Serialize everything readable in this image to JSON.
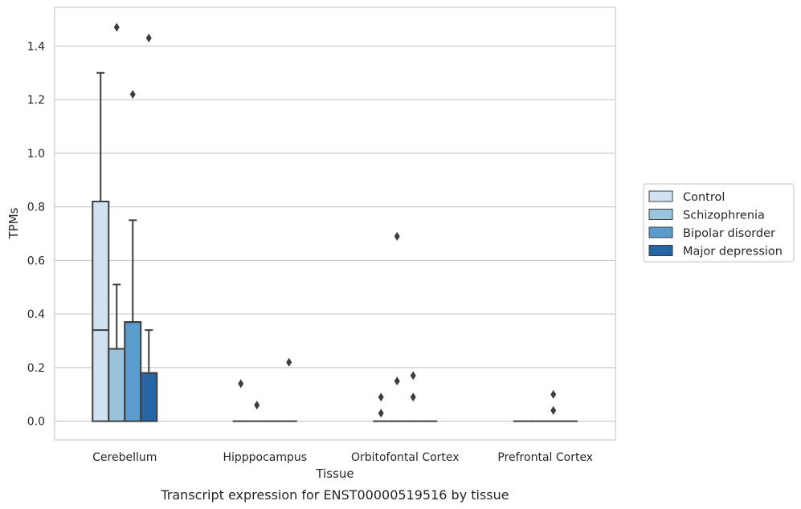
{
  "caption": "Transcript expression for ENST00000519516 by tissue",
  "chart_data": {
    "type": "box",
    "xlabel": "Tissue",
    "ylabel": "TPMs",
    "ylim": [
      -0.07,
      1.545
    ],
    "yticks": [
      "0.0",
      "0.2",
      "0.4",
      "0.6",
      "0.8",
      "1.0",
      "1.2",
      "1.4"
    ],
    "categories": [
      "Cerebellum",
      "Hipppocampus",
      "Orbitofontal Cortex",
      "Prefrontal Cortex"
    ],
    "grid": "horizontal",
    "legend_position": "right",
    "series": [
      {
        "name": "Control",
        "color": "#d0e1f1",
        "boxes": [
          {
            "q1": 0,
            "median": 0.34,
            "q3": 0.82,
            "whisker_low": 0,
            "whisker_high": 1.3,
            "outliers": []
          },
          {
            "q1": 0,
            "median": 0,
            "q3": 0,
            "whisker_low": 0,
            "whisker_high": 0,
            "outliers": [
              0.14
            ]
          },
          {
            "q1": 0,
            "median": 0,
            "q3": 0,
            "whisker_low": 0,
            "whisker_high": 0,
            "outliers": [
              0.03,
              0.09
            ]
          },
          {
            "q1": 0,
            "median": 0,
            "q3": 0,
            "whisker_low": 0,
            "whisker_high": 0,
            "outliers": []
          }
        ]
      },
      {
        "name": "Schizophrenia",
        "color": "#9ac3dc",
        "boxes": [
          {
            "q1": 0,
            "median": 0.27,
            "q3": 0.27,
            "whisker_low": 0,
            "whisker_high": 0.51,
            "outliers": [
              1.47
            ]
          },
          {
            "q1": 0,
            "median": 0,
            "q3": 0,
            "whisker_low": 0,
            "whisker_high": 0,
            "outliers": [
              0.06
            ]
          },
          {
            "q1": 0,
            "median": 0,
            "q3": 0,
            "whisker_low": 0,
            "whisker_high": 0,
            "outliers": [
              0.15,
              0.69
            ]
          },
          {
            "q1": 0,
            "median": 0,
            "q3": 0,
            "whisker_low": 0,
            "whisker_high": 0,
            "outliers": []
          }
        ]
      },
      {
        "name": "Bipolar disorder",
        "color": "#5a9ccb",
        "boxes": [
          {
            "q1": 0,
            "median": 0.37,
            "q3": 0.37,
            "whisker_low": 0,
            "whisker_high": 0.75,
            "outliers": [
              1.22
            ]
          },
          {
            "q1": 0,
            "median": 0,
            "q3": 0,
            "whisker_low": 0,
            "whisker_high": 0,
            "outliers": []
          },
          {
            "q1": 0,
            "median": 0,
            "q3": 0,
            "whisker_low": 0,
            "whisker_high": 0,
            "outliers": [
              0.09,
              0.17
            ]
          },
          {
            "q1": 0,
            "median": 0,
            "q3": 0,
            "whisker_low": 0,
            "whisker_high": 0,
            "outliers": [
              0.04,
              0.1
            ]
          }
        ]
      },
      {
        "name": "Major depression",
        "color": "#2665a6",
        "boxes": [
          {
            "q1": 0,
            "median": 0.18,
            "q3": 0.18,
            "whisker_low": 0,
            "whisker_high": 0.34,
            "outliers": [
              1.43
            ]
          },
          {
            "q1": 0,
            "median": 0,
            "q3": 0,
            "whisker_low": 0,
            "whisker_high": 0,
            "outliers": [
              0.22
            ]
          },
          {
            "q1": 0,
            "median": 0,
            "q3": 0,
            "whisker_low": 0,
            "whisker_high": 0,
            "outliers": []
          },
          {
            "q1": 0,
            "median": 0,
            "q3": 0,
            "whisker_low": 0,
            "whisker_high": 0,
            "outliers": []
          }
        ]
      }
    ]
  }
}
